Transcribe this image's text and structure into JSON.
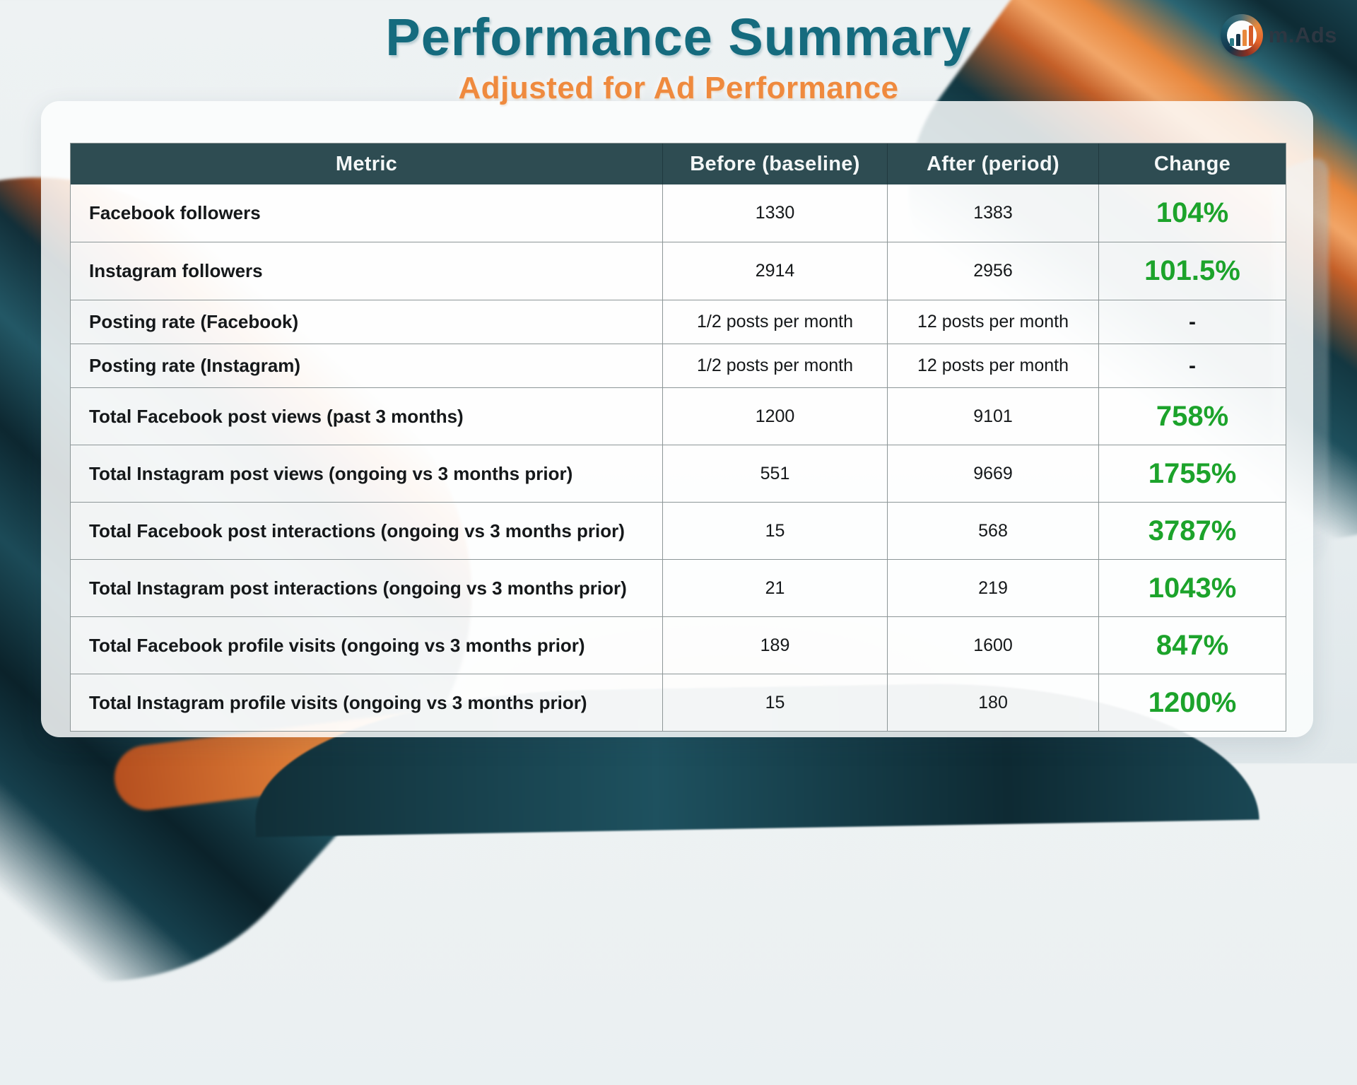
{
  "page": {
    "title": "Performance Summary",
    "subtitle": "Adjusted for Ad Performance"
  },
  "logo": {
    "text": "m.Ads",
    "icon": "bar-chart-swirl-icon"
  },
  "colors": {
    "title_teal": "#156b7e",
    "subtitle_orange": "#ef8a3e",
    "header_bg": "#2e4c52",
    "positive_green": "#1ca32b",
    "swirl_teal_dark": "#122f39",
    "swirl_orange": "#e8873c"
  },
  "table": {
    "columns": [
      "Metric",
      "Before (baseline)",
      "After (period)",
      "Change"
    ],
    "rows": [
      {
        "metric": "Facebook followers",
        "before": "1330",
        "after": "1383",
        "change": "104%",
        "change_positive": true
      },
      {
        "metric": "Instagram followers",
        "before": "2914",
        "after": "2956",
        "change": "101.5%",
        "change_positive": true
      },
      {
        "metric": "Posting rate (Facebook)",
        "before": "1/2 posts per month",
        "after": "12 posts per month",
        "change": "-",
        "change_positive": false
      },
      {
        "metric": "Posting rate (Instagram)",
        "before": "1/2 posts per month",
        "after": "12 posts per month",
        "change": "-",
        "change_positive": false
      },
      {
        "metric": "Total Facebook post views (past 3 months)",
        "before": "1200",
        "after": "9101",
        "change": "758%",
        "change_positive": true
      },
      {
        "metric": "Total Instagram post views (ongoing vs 3 months prior)",
        "before": "551",
        "after": "9669",
        "change": "1755%",
        "change_positive": true
      },
      {
        "metric": "Total Facebook post interactions (ongoing vs 3 months prior)",
        "before": "15",
        "after": "568",
        "change": "3787%",
        "change_positive": true
      },
      {
        "metric": "Total Instagram post interactions (ongoing vs 3 months prior)",
        "before": "21",
        "after": "219",
        "change": "1043%",
        "change_positive": true
      },
      {
        "metric": "Total Facebook profile visits (ongoing vs 3 months prior)",
        "before": "189",
        "after": "1600",
        "change": "847%",
        "change_positive": true
      },
      {
        "metric": "Total Instagram profile visits (ongoing vs 3 months prior)",
        "before": "15",
        "after": "180",
        "change": "1200%",
        "change_positive": true
      }
    ]
  }
}
